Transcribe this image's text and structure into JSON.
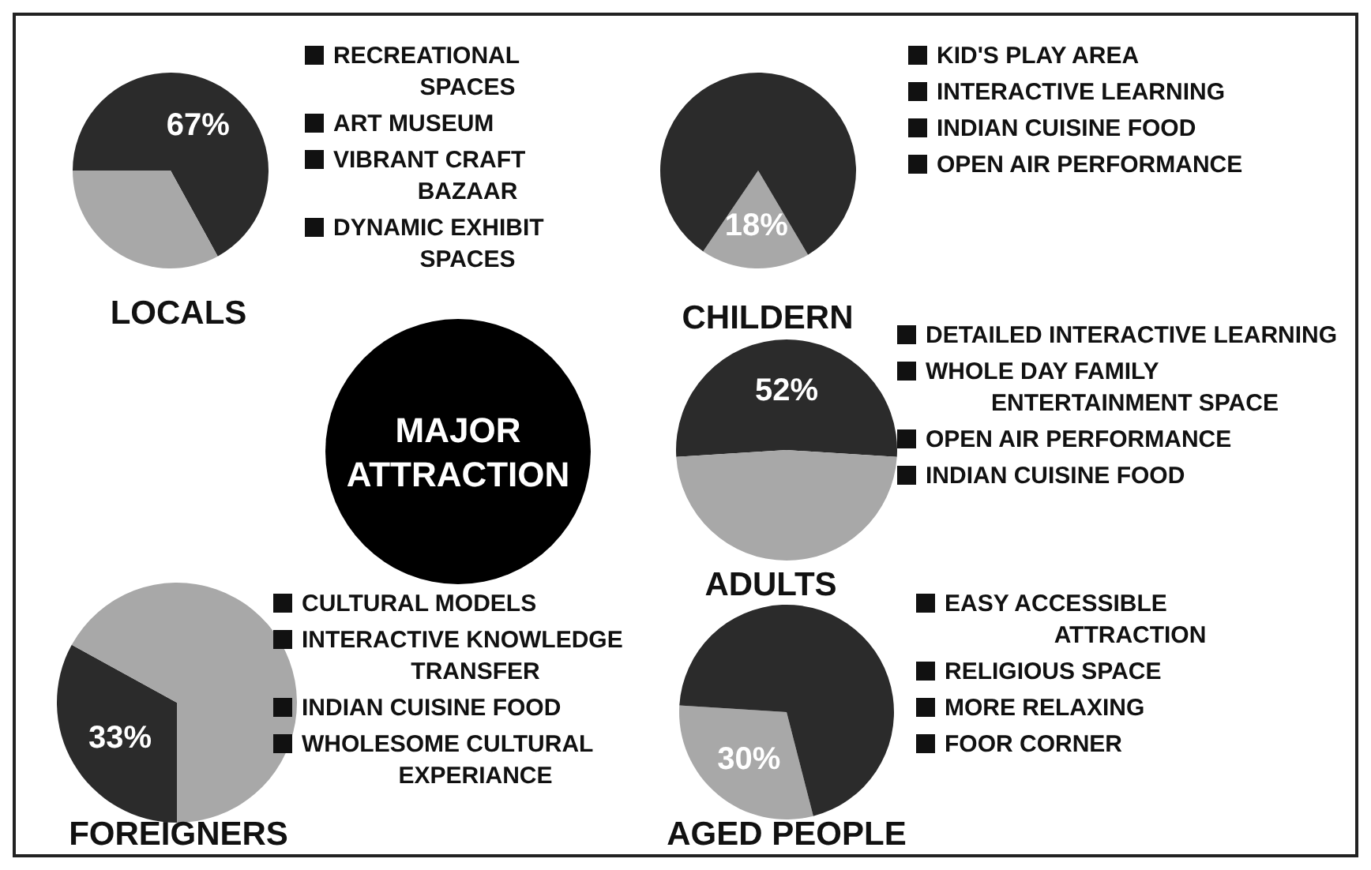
{
  "chart_data": [
    {
      "type": "pie",
      "title": "LOCALS",
      "categories": [
        null,
        null
      ],
      "values": [
        67,
        33
      ],
      "colors": [
        "#2b2b2b",
        "#a8a8a8"
      ],
      "value_labels": [
        "67%",
        null
      ],
      "annotations": [
        "RECREATIONAL SPACES",
        "ART MUSEUM",
        "VIBRANT CRAFT BAZAAR",
        "DYNAMIC EXHIBIT SPACES"
      ]
    },
    {
      "type": "pie",
      "title": "CHILDERN",
      "categories": [
        null,
        null
      ],
      "values": [
        18,
        82
      ],
      "colors": [
        "#a8a8a8",
        "#2b2b2b"
      ],
      "value_labels": [
        "18%",
        null
      ],
      "annotations": [
        "KID'S PLAY AREA",
        "INTERACTIVE LEARNING",
        "INDIAN CUISINE FOOD",
        "OPEN AIR PERFORMANCE"
      ]
    },
    {
      "type": "pie",
      "title": "ADULTS",
      "categories": [
        null,
        null
      ],
      "values": [
        52,
        48
      ],
      "colors": [
        "#2b2b2b",
        "#a8a8a8"
      ],
      "value_labels": [
        "52%",
        null
      ],
      "annotations": [
        "DETAILED INTERACTIVE LEARNING",
        "WHOLE DAY FAMILY ENTERTAINMENT SPACE",
        "OPEN AIR PERFORMANCE",
        "INDIAN CUISINE FOOD"
      ]
    },
    {
      "type": "pie",
      "title": "FOREIGNERS",
      "categories": [
        null,
        null
      ],
      "values": [
        33,
        67
      ],
      "colors": [
        "#2b2b2b",
        "#a8a8a8"
      ],
      "value_labels": [
        "33%",
        null
      ],
      "annotations": [
        "CULTURAL MODELS",
        "INTERACTIVE KNOWLEDGE TRANSFER",
        "INDIAN CUISINE FOOD",
        "WHOLESOME CULTURAL EXPERIANCE"
      ]
    },
    {
      "type": "pie",
      "title": "AGED PEOPLE",
      "categories": [
        null,
        null
      ],
      "values": [
        30,
        70
      ],
      "colors": [
        "#a8a8a8",
        "#2b2b2b"
      ],
      "value_labels": [
        "30%",
        null
      ],
      "annotations": [
        "EASY ACCESSIBLE ATTRACTION",
        "RELIGIOUS SPACE",
        "MORE RELAXING",
        "FOOR CORNER"
      ]
    },
    {
      "type": "other",
      "title": "MAJOR ATTRACTION"
    }
  ]
}
